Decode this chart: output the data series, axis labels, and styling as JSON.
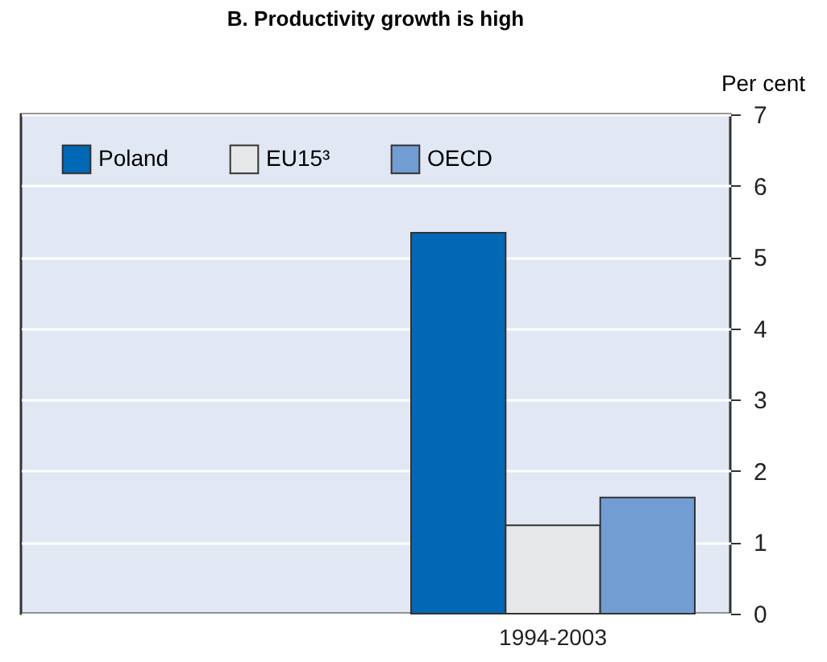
{
  "chart_data": {
    "type": "bar",
    "title": "B. Productivity growth is high",
    "ylabel": "Per cent",
    "categories": [
      null,
      "1994-2003"
    ],
    "series": [
      {
        "name": "Poland",
        "color": "#0068b4",
        "values": [
          null,
          5.34
        ]
      },
      {
        "name": "EU15³",
        "color": "#e6e7e9",
        "values": [
          null,
          1.24
        ]
      },
      {
        "name": "OECD",
        "color": "#729dd2",
        "values": [
          null,
          1.63
        ]
      }
    ],
    "ylim": [
      0,
      7
    ],
    "yticks": [
      0,
      1,
      2,
      3,
      4,
      5,
      6,
      7
    ],
    "grid": "y",
    "legend": "top left"
  }
}
